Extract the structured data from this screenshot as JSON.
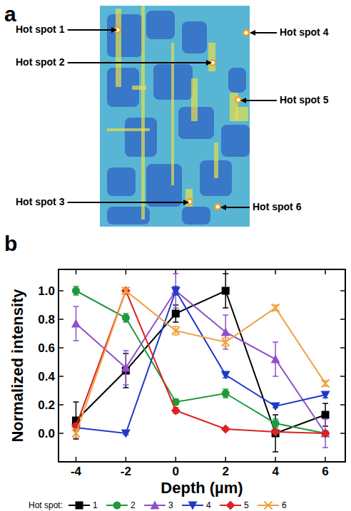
{
  "image_panel": {
    "letter": "a",
    "labels": [
      "Hot spot 1",
      "Hot spot 2",
      "Hot spot 3",
      "Hot spot 4",
      "Hot spot 5",
      "Hot spot 6"
    ]
  },
  "chart_panel": {
    "letter": "b"
  },
  "chart_data": {
    "type": "line",
    "x_label": "Depth (µm)",
    "y_label": "Normalized intensity",
    "x": [
      -4,
      -2,
      0,
      2,
      4,
      6
    ],
    "xlim": [
      -4.7,
      6.8
    ],
    "xticks": [
      -4,
      -2,
      0,
      2,
      4,
      6
    ],
    "ylim": [
      -0.2,
      1.15
    ],
    "yticks": [
      {
        "value": 0,
        "label": "0.0"
      },
      {
        "value": 0.2,
        "label": "0.2"
      },
      {
        "value": 0.4,
        "label": "0.4"
      },
      {
        "value": 0.6,
        "label": "0.6"
      },
      {
        "value": 0.8,
        "label": "0.8"
      },
      {
        "value": 1,
        "label": "1.0"
      }
    ],
    "legend": "bottom",
    "legend_title": "Hot spot:",
    "series": [
      {
        "name": "1",
        "color": "#000000",
        "marker": "square",
        "line_style": "solid",
        "values": [
          0.09,
          0.44,
          0.84,
          1.0,
          0.0,
          0.13
        ],
        "errors": [
          0.13,
          0.12,
          0.06,
          0.12,
          0.13,
          0.08
        ]
      },
      {
        "name": "2",
        "color": "#1e9a3c",
        "marker": "circle",
        "line_style": "solid",
        "values": [
          1.0,
          0.81,
          0.22,
          0.28,
          0.07,
          0.0
        ],
        "errors": [
          0.03,
          0.03,
          0.02,
          0.03,
          0.03,
          0.01
        ]
      },
      {
        "name": "3",
        "color": "#9050c8",
        "marker": "triangle",
        "line_style": "solid",
        "values": [
          0.77,
          0.46,
          1.0,
          0.71,
          0.52,
          0.0
        ],
        "errors": [
          0.12,
          0.12,
          0.12,
          0.12,
          0.12,
          0.1
        ]
      },
      {
        "name": "4",
        "color": "#2038c8",
        "marker": "triangle-down",
        "line_style": "solid",
        "values": [
          0.04,
          0.0,
          1.0,
          0.41,
          0.19,
          0.27
        ],
        "errors": [
          0.02,
          0.01,
          0.03,
          0.02,
          0.01,
          0.02
        ]
      },
      {
        "name": "5",
        "color": "#e02020",
        "marker": "diamond",
        "line_style": "solid",
        "values": [
          0.05,
          1.0,
          0.16,
          0.03,
          0.01,
          0.0
        ],
        "errors": [
          0.02,
          0.02,
          0.02,
          0.01,
          0.01,
          0.01
        ]
      },
      {
        "name": "6",
        "color": "#f0a040",
        "marker": "x",
        "line_style": "solid",
        "values": [
          0.0,
          1.0,
          0.72,
          0.64,
          0.88,
          0.35
        ],
        "errors": [
          0.03,
          0.02,
          0.03,
          0.03,
          0.02,
          0.02
        ]
      }
    ]
  }
}
